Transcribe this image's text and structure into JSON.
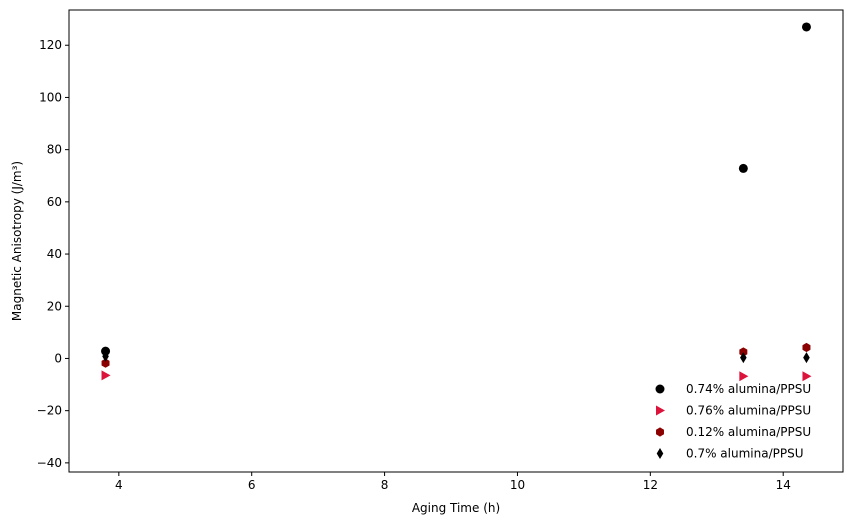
{
  "chart_data": {
    "type": "scatter",
    "title": "",
    "xlabel": "Aging Time (h)",
    "ylabel": "Magnetic Anisotropy (J/m³)",
    "xlim": [
      3.25,
      14.9
    ],
    "ylim": [
      -43.5,
      133.5
    ],
    "xticks": [
      4,
      6,
      8,
      10,
      12,
      14
    ],
    "yticks": [
      -40,
      -20,
      0,
      20,
      40,
      60,
      80,
      100,
      120
    ],
    "grid": false,
    "legend_position": "lower-right",
    "series": [
      {
        "name": "0.74% alumina/PPSU",
        "marker": "circle",
        "color": "#000000",
        "x": [
          3.8,
          13.4,
          14.35
        ],
        "y": [
          2.8,
          72.8,
          127.0
        ]
      },
      {
        "name": "0.76% alumina/PPSU",
        "marker": "triangle-right",
        "color": "#dc143c",
        "x": [
          3.8,
          13.4,
          14.35
        ],
        "y": [
          -6.5,
          -6.8,
          -6.8
        ]
      },
      {
        "name": "0.12% alumina/PPSU",
        "marker": "hexagon",
        "color": "#8b0000",
        "x": [
          3.8,
          13.4,
          14.35
        ],
        "y": [
          -1.8,
          2.5,
          4.2
        ]
      },
      {
        "name": "0.7% alumina/PPSU",
        "marker": "thin-diamond",
        "color": "#000000",
        "x": [
          3.8,
          13.4,
          14.35
        ],
        "y": [
          0.8,
          0.3,
          0.3
        ]
      }
    ]
  }
}
